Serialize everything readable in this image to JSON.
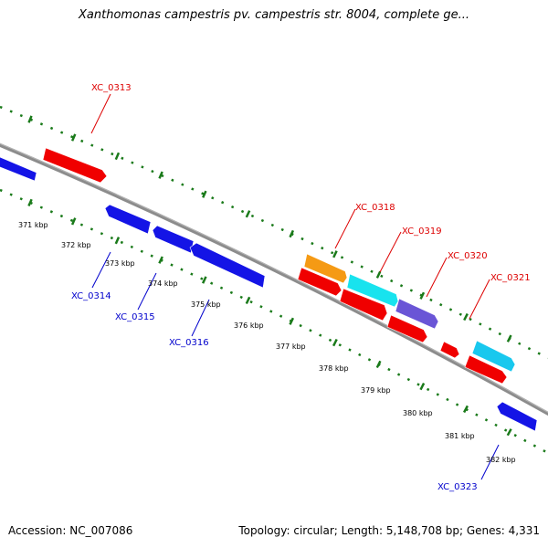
{
  "header": {
    "title": "Xanthomonas campestris pv. campestris str. 8004, complete ge..."
  },
  "footer": {
    "accession": "Accession: NC_007086",
    "stats": "Topology: circular; Length: 5,148,708 bp; Genes: 4,331"
  },
  "colors": {
    "backbone": "#8c8c8c",
    "tick": "#1a7a1a",
    "label_forward": "#dd0000",
    "label_reverse": "#0000cc",
    "scale_text": "#000000"
  },
  "scale_labels": [
    "371 kbp",
    "372 kbp",
    "373 kbp",
    "374 kbp",
    "375 kbp",
    "376 kbp",
    "377 kbp",
    "378 kbp",
    "379 kbp",
    "380 kbp",
    "381 kbp",
    "382 kbp"
  ],
  "genes": [
    {
      "id": "g-blue-left",
      "strand": "reverse",
      "color": "#1414e6"
    },
    {
      "id": "g-red-313",
      "strand": "forward",
      "color": "#f00000"
    },
    {
      "id": "g-blue-314",
      "strand": "reverse",
      "color": "#1414e6"
    },
    {
      "id": "g-blue-315",
      "strand": "reverse",
      "color": "#1414e6"
    },
    {
      "id": "g-blue-316",
      "strand": "reverse",
      "color": "#1414e6"
    },
    {
      "id": "g-orange-318",
      "strand": "forward",
      "color": "#f59a14"
    },
    {
      "id": "g-red-a",
      "strand": "forward",
      "color": "#f00000"
    },
    {
      "id": "g-cyan-319",
      "strand": "forward",
      "color": "#18e3ee"
    },
    {
      "id": "g-red-b",
      "strand": "forward",
      "color": "#f00000"
    },
    {
      "id": "g-purple-320",
      "strand": "forward",
      "color": "#6a55d6"
    },
    {
      "id": "g-red-c",
      "strand": "forward",
      "color": "#f00000"
    },
    {
      "id": "g-red-small",
      "strand": "forward",
      "color": "#f00000"
    },
    {
      "id": "g-cyan-321",
      "strand": "forward",
      "color": "#18c8ee"
    },
    {
      "id": "g-red-d",
      "strand": "forward",
      "color": "#f00000"
    },
    {
      "id": "g-blue-323",
      "strand": "reverse",
      "color": "#1414e6"
    }
  ],
  "gene_labels": [
    {
      "id": "lbl-313",
      "text": "XC_0313",
      "strand": "forward"
    },
    {
      "id": "lbl-318",
      "text": "XC_0318",
      "strand": "forward"
    },
    {
      "id": "lbl-319",
      "text": "XC_0319",
      "strand": "forward"
    },
    {
      "id": "lbl-320",
      "text": "XC_0320",
      "strand": "forward"
    },
    {
      "id": "lbl-321",
      "text": "XC_0321",
      "strand": "forward"
    },
    {
      "id": "lbl-314",
      "text": "XC_0314",
      "strand": "reverse"
    },
    {
      "id": "lbl-315",
      "text": "XC_0315",
      "strand": "reverse"
    },
    {
      "id": "lbl-316",
      "text": "XC_0316",
      "strand": "reverse"
    },
    {
      "id": "lbl-323",
      "text": "XC_0323",
      "strand": "reverse"
    }
  ]
}
